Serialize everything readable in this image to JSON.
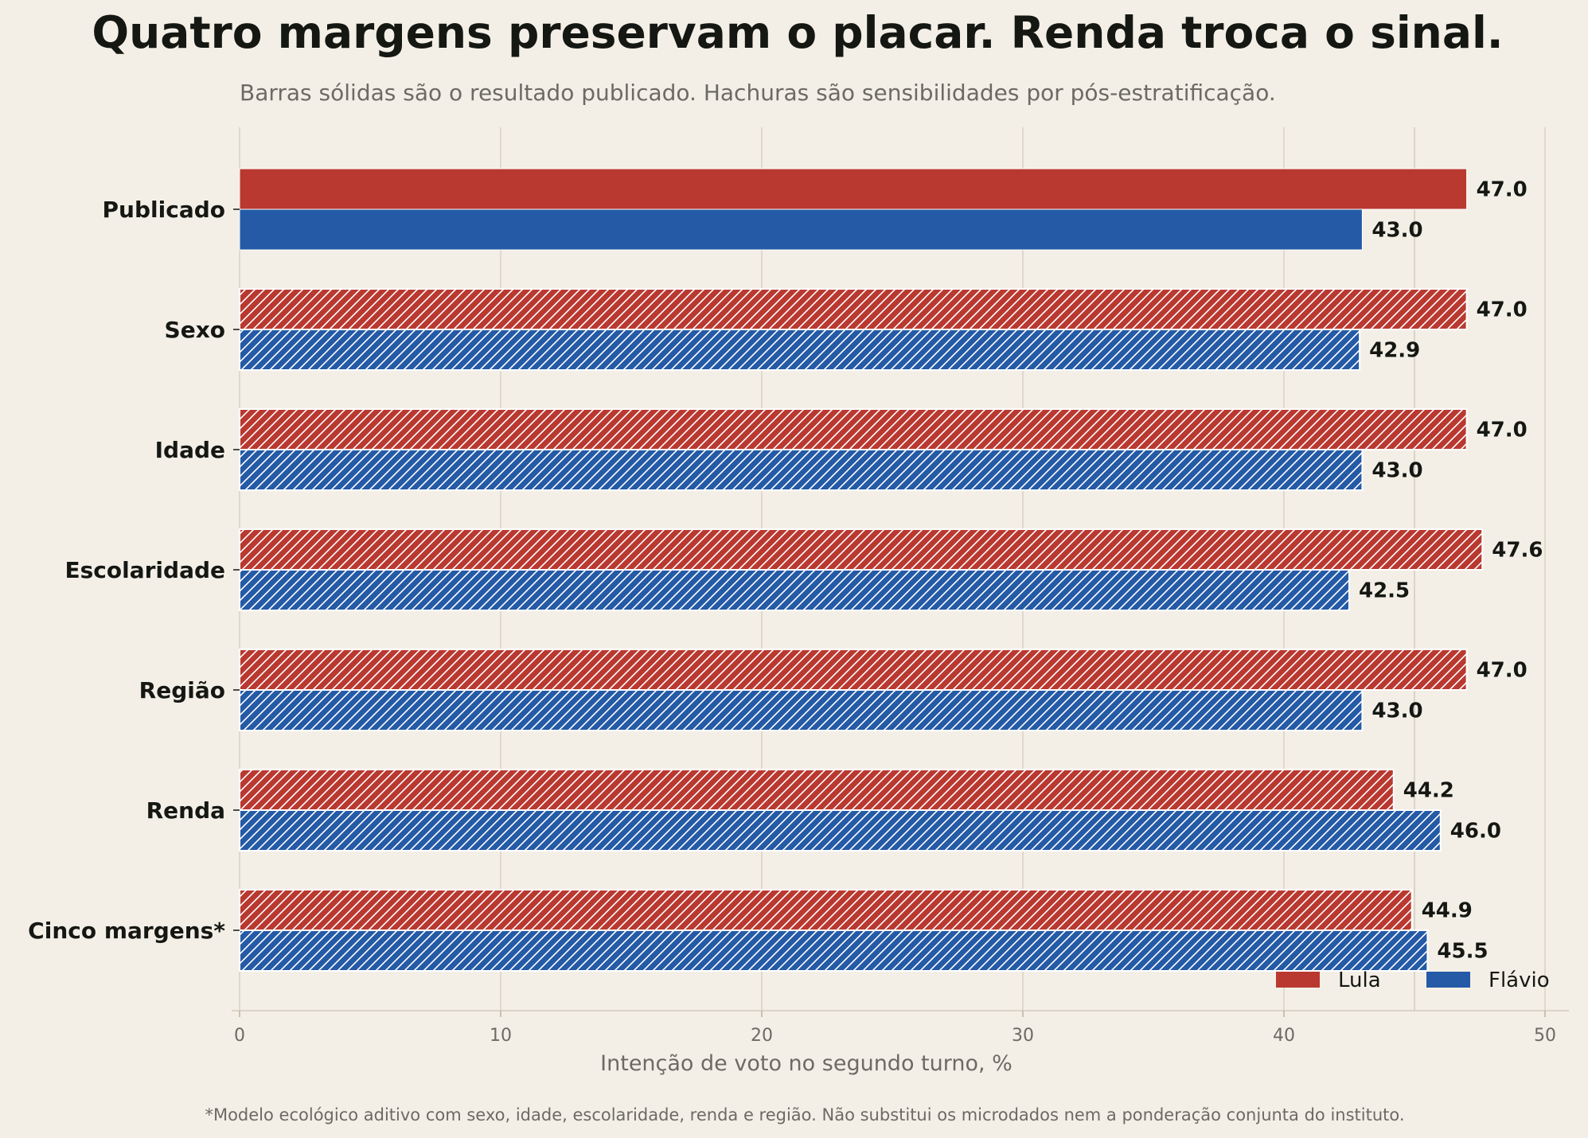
{
  "chart_data": {
    "type": "bar",
    "orientation": "horizontal",
    "title": "Quatro margens preservam o placar. Renda troca o sinal.",
    "subtitle": "Barras sólidas são o resultado publicado. Hachuras são sensibilidades por pós-estratificação.",
    "footnote": "*Modelo ecológico aditivo com sexo, idade, escolaridade, renda e região. Não substitui os microdados nem a ponderação conjunta do instituto.",
    "xlabel": "Intenção de voto no segundo turno, %",
    "ylabel": "",
    "xlim": [
      0,
      50
    ],
    "xticks": [
      0,
      10,
      20,
      30,
      40,
      50
    ],
    "grid": "vertical",
    "reference_line": 45,
    "legend_placement": "bottom-right",
    "categories": [
      "Publicado",
      "Sexo",
      "Idade",
      "Escolaridade",
      "Região",
      "Renda",
      "Cinco margens*"
    ],
    "hatched": [
      false,
      true,
      true,
      true,
      true,
      true,
      true
    ],
    "series": [
      {
        "name": "Lula",
        "color": "#b93930",
        "values": [
          47.0,
          47.0,
          47.0,
          47.6,
          47.0,
          44.2,
          44.9
        ],
        "labels": [
          "47.0",
          "47.0",
          "47.0",
          "47.6",
          "47.0",
          "44.2",
          "44.9"
        ]
      },
      {
        "name": "Flávio",
        "color": "#245aa6",
        "values": [
          43.0,
          42.9,
          43.0,
          42.5,
          43.0,
          46.0,
          45.5
        ],
        "labels": [
          "43.0",
          "42.9",
          "43.0",
          "42.5",
          "43.0",
          "46.0",
          "45.5"
        ]
      }
    ]
  }
}
